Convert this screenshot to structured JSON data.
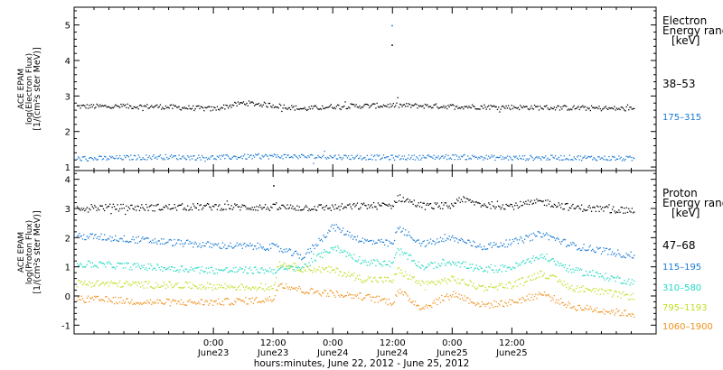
{
  "chart_data": [
    {
      "type": "scatter",
      "ylabel_lines": [
        "ACE EPAM",
        "log(Electron Flux)",
        "[1/(cm²s ster MeV)]"
      ],
      "ylim": [
        0.9,
        5.5
      ],
      "yticks": [
        1,
        2,
        3,
        4,
        5
      ],
      "legend_title": [
        "Electron",
        "Energy ranges",
        "[keV]"
      ],
      "series": [
        {
          "name": "38–53",
          "color": "#000000",
          "x": [
            -24,
            -12,
            0,
            6,
            12,
            18,
            24,
            36,
            48,
            60,
            72,
            84
          ],
          "y": [
            2.72,
            2.72,
            2.65,
            2.82,
            2.75,
            2.65,
            2.72,
            2.75,
            2.72,
            2.7,
            2.68,
            2.65
          ]
        },
        {
          "name": "175–315",
          "color": "#1a7ad4",
          "x": [
            -24,
            -12,
            0,
            12,
            24,
            36,
            48,
            60,
            72,
            84
          ],
          "y": [
            1.25,
            1.3,
            1.28,
            1.32,
            1.3,
            1.28,
            1.3,
            1.27,
            1.28,
            1.25
          ]
        }
      ],
      "outliers": [
        {
          "x": 35.8,
          "y": 5.0
        },
        {
          "x": 35.8,
          "y": 4.45
        }
      ]
    },
    {
      "type": "scatter",
      "ylabel_lines": [
        "ACE EPAM",
        "log(Proton Flux)",
        "[1/(cm²s ster MeV)]"
      ],
      "ylim": [
        -1.3,
        4.3
      ],
      "yticks": [
        -1,
        0,
        1,
        2,
        3,
        4
      ],
      "legend_title": [
        "Proton",
        "Energy ranges",
        "[keV]"
      ],
      "series": [
        {
          "name": "47–68",
          "color": "#000000",
          "x": [
            -24,
            -12,
            0,
            12,
            24,
            30,
            36,
            37,
            42,
            48,
            49,
            54,
            60,
            66,
            72,
            84
          ],
          "y": [
            3.05,
            3.05,
            3.08,
            3.05,
            3.05,
            3.1,
            3.12,
            3.4,
            3.1,
            3.1,
            3.35,
            3.15,
            3.1,
            3.25,
            3.05,
            2.95
          ]
        },
        {
          "name": "115–195",
          "color": "#1a7ad4",
          "x": [
            -24,
            -12,
            0,
            12,
            18,
            24,
            30,
            36,
            37,
            42,
            48,
            54,
            60,
            66,
            72,
            84
          ],
          "y": [
            2.05,
            1.9,
            1.75,
            1.7,
            1.35,
            2.4,
            1.9,
            1.8,
            2.35,
            1.8,
            2.0,
            1.7,
            1.85,
            2.15,
            1.75,
            1.4
          ]
        },
        {
          "name": "310–580",
          "color": "#22d9c4",
          "x": [
            -24,
            -12,
            0,
            12,
            18,
            24,
            30,
            36,
            37,
            42,
            48,
            54,
            60,
            66,
            72,
            84
          ],
          "y": [
            1.1,
            1.0,
            0.9,
            0.9,
            1.0,
            1.7,
            1.2,
            1.1,
            1.6,
            1.0,
            1.2,
            0.9,
            1.0,
            1.4,
            0.9,
            0.5
          ]
        },
        {
          "name": "795–1193",
          "color": "#bde022",
          "x": [
            -24,
            -12,
            0,
            12,
            13,
            18,
            24,
            30,
            36,
            37,
            42,
            48,
            54,
            60,
            66,
            72,
            84
          ],
          "y": [
            0.45,
            0.4,
            0.35,
            0.3,
            1.15,
            0.95,
            0.9,
            0.6,
            0.55,
            0.9,
            0.4,
            0.6,
            0.3,
            0.4,
            0.8,
            0.3,
            0.0
          ]
        },
        {
          "name": "1060–1900",
          "color": "#f0901a",
          "x": [
            -24,
            -12,
            0,
            12,
            13,
            18,
            24,
            30,
            36,
            37,
            42,
            48,
            54,
            60,
            66,
            72,
            84
          ],
          "y": [
            -0.1,
            -0.2,
            -0.2,
            -0.1,
            0.45,
            0.2,
            0.1,
            0.0,
            -0.2,
            0.2,
            -0.4,
            0.1,
            -0.3,
            -0.2,
            0.1,
            -0.35,
            -0.6
          ]
        }
      ],
      "outliers": [
        {
          "x": 12,
          "y": 3.8
        }
      ]
    }
  ],
  "x_axis": {
    "range_hours": [
      -28,
      89
    ],
    "ticks": [
      {
        "x": 0,
        "time": "0:00",
        "date": "June23"
      },
      {
        "x": 12,
        "time": "12:00",
        "date": "June23"
      },
      {
        "x": 24,
        "time": "0:00",
        "date": "June24"
      },
      {
        "x": 36,
        "time": "12:00",
        "date": "June24"
      },
      {
        "x": 48,
        "time": "0:00",
        "date": "June25"
      },
      {
        "x": 60,
        "time": "12:00",
        "date": "June25"
      }
    ],
    "label": "hours:minutes, June 22, 2012 - June 25, 2012"
  }
}
